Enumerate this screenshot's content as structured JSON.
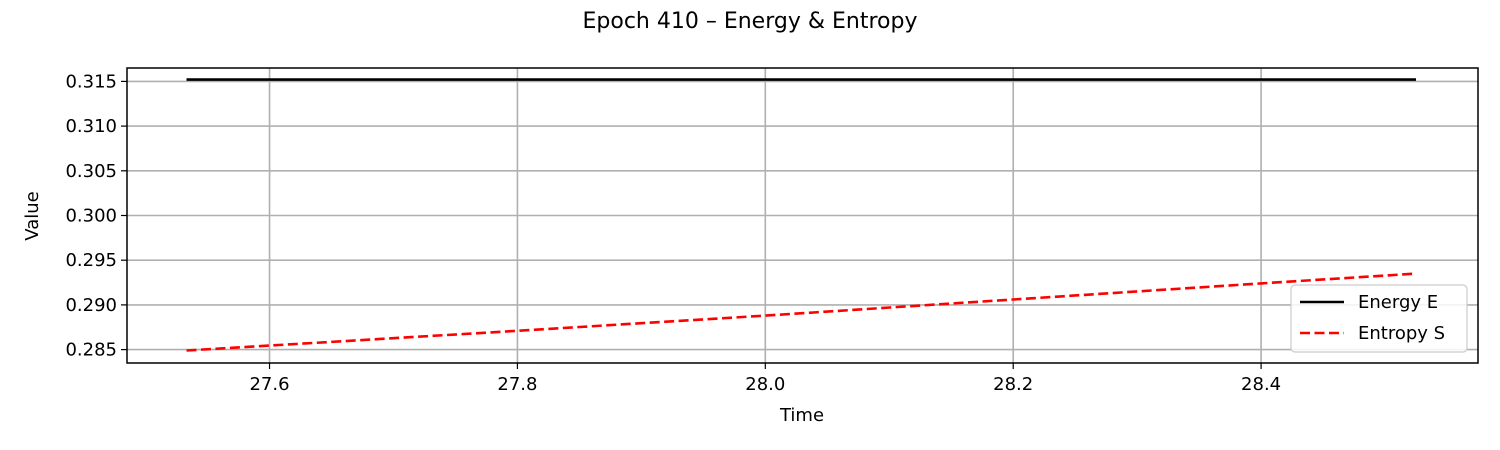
{
  "chart_data": {
    "type": "line",
    "title": "Epoch 410 – Energy & Entropy",
    "xlabel": "Time",
    "ylabel": "Value",
    "xlim": [
      27.485,
      28.575
    ],
    "ylim": [
      0.2835,
      0.3165
    ],
    "xticks": [
      27.6,
      27.8,
      28.0,
      28.2,
      28.4
    ],
    "xtick_labels": [
      "27.6",
      "27.8",
      "28.0",
      "28.2",
      "28.4"
    ],
    "yticks": [
      0.285,
      0.29,
      0.295,
      0.3,
      0.305,
      0.31,
      0.315
    ],
    "ytick_labels": [
      "0.285",
      "0.290",
      "0.295",
      "0.300",
      "0.305",
      "0.310",
      "0.315"
    ],
    "grid": true,
    "legend_position": "lower-right",
    "series": [
      {
        "name": "Energy E",
        "color": "#000000",
        "style": "solid",
        "x": [
          27.533,
          28.0,
          28.525
        ],
        "y": [
          0.3152,
          0.3152,
          0.3152
        ]
      },
      {
        "name": "Entropy S",
        "color": "#ff0000",
        "style": "dashed",
        "x": [
          27.533,
          27.8,
          28.0,
          28.2,
          28.4,
          28.525
        ],
        "y": [
          0.2849,
          0.2871,
          0.2888,
          0.2906,
          0.2924,
          0.2935
        ]
      }
    ]
  }
}
